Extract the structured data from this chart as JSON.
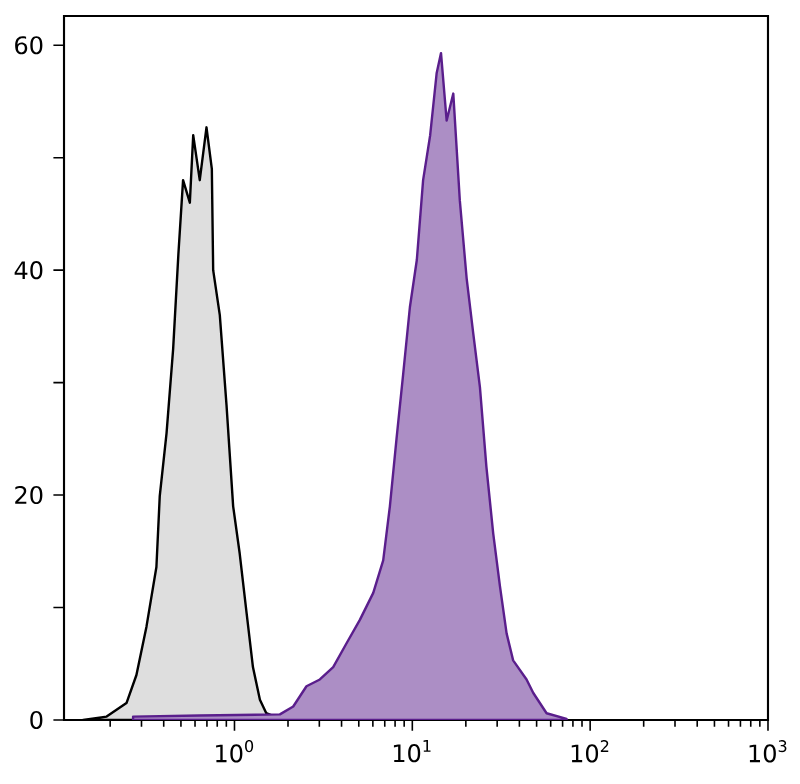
{
  "chart_data": {
    "type": "area",
    "log": "x",
    "xlim": [
      0.11,
      1000
    ],
    "ylim": [
      0,
      62.6
    ],
    "xticks": [
      {
        "value": 1,
        "label": "10$^{0}$"
      },
      {
        "value": 10,
        "label": "10$^{1}$"
      },
      {
        "value": 100,
        "label": "10$^{2}$"
      },
      {
        "value": 1000,
        "label": "10$^{3}$"
      }
    ],
    "yticks": [
      0,
      {
        "value": 10,
        "label": null
      },
      20,
      {
        "value": 30,
        "label": null
      },
      40,
      {
        "value": 50,
        "label": null
      },
      60
    ],
    "series": [
      {
        "color": "#000000",
        "x": [
          0.141,
          0.191,
          0.247,
          0.281,
          0.32,
          0.364,
          0.38,
          0.415,
          0.452,
          0.484,
          0.514,
          0.561,
          0.586,
          0.638,
          0.696,
          0.746,
          0.759,
          0.827,
          0.902,
          0.983,
          1.07,
          1.17,
          1.27,
          1.39,
          1.51,
          1.8
        ],
        "values": [
          0,
          0.3,
          1.5,
          4,
          8.3,
          13.6,
          19.9,
          25.5,
          33,
          41.5,
          48,
          46,
          52,
          48,
          52.7,
          49,
          40,
          36,
          28,
          19,
          14.8,
          9.5,
          4.7,
          1.8,
          0.6,
          0.1
        ]
      },
      {
        "color": "#5a1e8c",
        "x": [
          0.269,
          0.638,
          1.8,
          2.14,
          2.54,
          3.02,
          3.59,
          4.26,
          5.07,
          6.03,
          6.86,
          7.48,
          8.15,
          8.89,
          9.69,
          10.6,
          11.5,
          12.6,
          13.7,
          14.5,
          15.6,
          17.0,
          18.5,
          20.2,
          22.0,
          24.0,
          26.1,
          28.5,
          31.1,
          33.9,
          36.9,
          43.9,
          47.9,
          56.9,
          73.7
        ],
        "values": [
          0.3,
          0.4,
          0.5,
          1.2,
          3,
          3.6,
          4.7,
          6.8,
          8.9,
          11.3,
          14.2,
          19,
          25,
          30.8,
          36.7,
          40.9,
          48,
          52,
          57.5,
          59.3,
          53.3,
          55.7,
          46.2,
          39.3,
          34.4,
          29.6,
          22.5,
          16.6,
          11.9,
          7.7,
          5.3,
          3.6,
          2.4,
          0.6,
          0.1
        ]
      }
    ]
  }
}
